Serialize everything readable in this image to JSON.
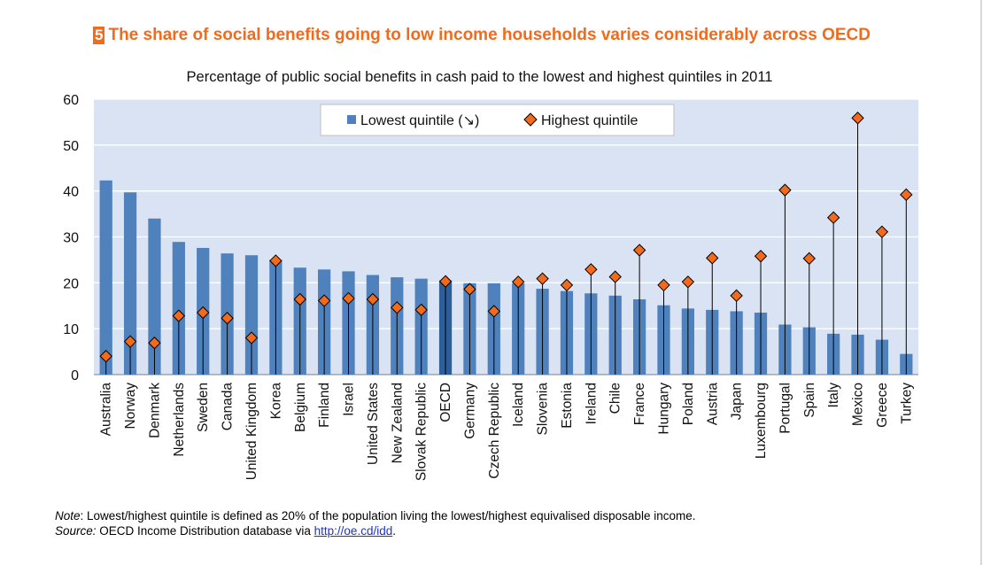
{
  "header": {
    "badge": "5",
    "title": "The share of social benefits going to low income households varies considerably across OECD"
  },
  "chart_data": {
    "type": "bar",
    "title": "Percentage of public social benefits in cash paid to the lowest and highest quintiles in 2011",
    "xlabel": "",
    "ylabel": "",
    "ylim": [
      0,
      60
    ],
    "yticks": [
      0,
      10,
      20,
      30,
      40,
      50,
      60
    ],
    "legend": "top-center",
    "categories": [
      "Australia",
      "Norway",
      "Denmark",
      "Netherlands",
      "Sweden",
      "Canada",
      "United Kingdom",
      "Korea",
      "Belgium",
      "Finland",
      "Israel",
      "United States",
      "New Zealand",
      "Slovak Republic",
      "OECD",
      "Germany",
      "Czech Republic",
      "Iceland",
      "Slovenia",
      "Estonia",
      "Ireland",
      "Chile",
      "France",
      "Hungary",
      "Poland",
      "Austria",
      "Japan",
      "Luxembourg",
      "Portugal",
      "Spain",
      "Italy",
      "Mexico",
      "Greece",
      "Turkey"
    ],
    "series": [
      {
        "name": "Lowest quintile (↘)",
        "type": "bar",
        "color": "#4f81bd",
        "values": [
          42.3,
          39.7,
          34.0,
          28.9,
          27.6,
          26.4,
          26.0,
          25.0,
          23.3,
          22.9,
          22.5,
          21.7,
          21.2,
          20.9,
          20.5,
          19.9,
          19.9,
          19.9,
          18.7,
          18.2,
          17.7,
          17.2,
          16.4,
          15.1,
          14.4,
          14.1,
          13.8,
          13.5,
          10.9,
          10.3,
          8.9,
          8.7,
          7.6,
          4.5
        ]
      },
      {
        "name": "Highest quintile",
        "type": "marker",
        "color": "#f26a1b",
        "values": [
          4.0,
          7.2,
          6.9,
          12.8,
          13.5,
          12.3,
          8.0,
          24.8,
          16.4,
          16.1,
          16.6,
          16.4,
          14.6,
          14.1,
          20.3,
          18.6,
          13.8,
          20.2,
          20.9,
          19.5,
          22.9,
          21.3,
          27.1,
          19.5,
          20.2,
          25.4,
          17.2,
          25.8,
          40.2,
          25.3,
          34.2,
          55.9,
          31.1,
          39.2
        ]
      }
    ]
  },
  "footer": {
    "note_label": "Note",
    "note_text": ": Lowest/highest quintile is defined as 20% of the population living the lowest/highest equivalised disposable income.",
    "source_label": "Source:",
    "source_text": " OECD Income Distribution database via ",
    "source_link": "http://oe.cd/idd",
    "source_end": "."
  },
  "colors": {
    "accent": "#f26a1b",
    "plot_bg": "#dae3f3",
    "bar": "#4f81bd",
    "bar_highlight": "#2e5e9a",
    "marker": "#f26a1b",
    "link": "#1a35c9"
  }
}
